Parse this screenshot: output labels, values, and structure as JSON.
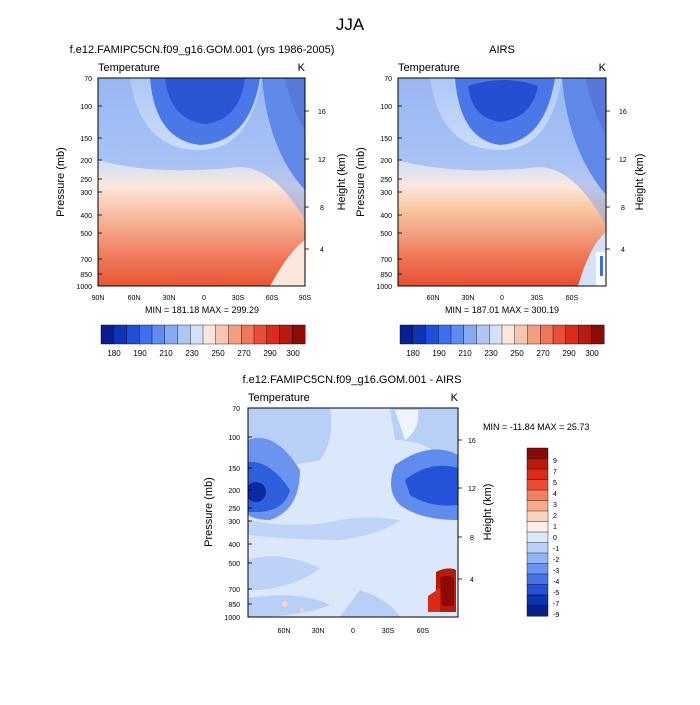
{
  "page": {
    "main_title": "JJA"
  },
  "chart_data": [
    {
      "id": "model",
      "type": "heatmap",
      "title": "f.e12.FAMIPC5CN.f09_g16.GOM.001 (yrs 1986-2005)",
      "left_label": "Temperature",
      "right_label": "K",
      "ylabel": "Pressure (mb)",
      "y2label": "Height (km)",
      "y_ticks": [
        "70",
        "100",
        "150",
        "200",
        "250",
        "300",
        "400",
        "500",
        "700",
        "850",
        "1000"
      ],
      "y2_ticks": [
        "16",
        "12",
        "8",
        "4"
      ],
      "x_ticks": [
        "90N",
        "60N",
        "30N",
        "0",
        "30S",
        "60S",
        "90S"
      ],
      "stats": "MIN = 181.18   MAX = 299.29",
      "colorbar_ticks": [
        "180",
        "190",
        "210",
        "230",
        "250",
        "270",
        "290",
        "300"
      ]
    },
    {
      "id": "obs",
      "type": "heatmap",
      "title": "AIRS",
      "left_label": "Temperature",
      "right_label": "K",
      "ylabel": "Pressure (mb)",
      "y2label": "Height (km)",
      "y_ticks": [
        "70",
        "100",
        "150",
        "200",
        "250",
        "300",
        "400",
        "500",
        "700",
        "850",
        "1000"
      ],
      "y2_ticks": [
        "16",
        "12",
        "8",
        "4"
      ],
      "x_ticks": [
        "60N",
        "30N",
        "0",
        "30S",
        "60S"
      ],
      "stats": "MIN = 187.01   MAX = 300.19",
      "colorbar_ticks": [
        "180",
        "190",
        "210",
        "230",
        "250",
        "270",
        "290",
        "300"
      ]
    },
    {
      "id": "diff",
      "type": "heatmap",
      "title": "f.e12.FAMIPC5CN.f09_g16.GOM.001 - AIRS",
      "left_label": "Temperature",
      "right_label": "K",
      "ylabel": "Pressure (mb)",
      "y2label": "Height (km)",
      "y_ticks": [
        "70",
        "100",
        "150",
        "200",
        "250",
        "300",
        "400",
        "500",
        "700",
        "850",
        "1000"
      ],
      "y2_ticks": [
        "16",
        "12",
        "8",
        "4"
      ],
      "x_ticks": [
        "60N",
        "30N",
        "0",
        "30S",
        "60S"
      ],
      "stats": "MIN = -11.84   MAX =  25.73",
      "colorbar_ticks": [
        "9",
        "7",
        "5",
        "4",
        "3",
        "2",
        "1",
        "0",
        "-1",
        "-2",
        "-3",
        "-4",
        "-5",
        "-7",
        "-9"
      ]
    }
  ],
  "colors": {
    "abs_scale": [
      "#0a1f8f",
      "#0d34b5",
      "#1f4fd9",
      "#3b6ff0",
      "#5d8cf2",
      "#86a9f4",
      "#adc6f6",
      "#d2e1f9",
      "#fbe6dc",
      "#f8c5ae",
      "#f49e80",
      "#ef7658",
      "#e84e35",
      "#dd2b1a",
      "#b91a0d",
      "#8c0b05"
    ],
    "diff_scale": [
      "#8b0a05",
      "#b81a0d",
      "#dc2a19",
      "#e84e35",
      "#f0805f",
      "#f5aa8c",
      "#f9d3c1",
      "#fdefe6",
      "#dbe7fa",
      "#b9d0f7",
      "#93b4f3",
      "#6b94ef",
      "#4673ea",
      "#2250d8",
      "#0c33b0",
      "#08208a"
    ],
    "diff_background": "#dbe7fa"
  }
}
